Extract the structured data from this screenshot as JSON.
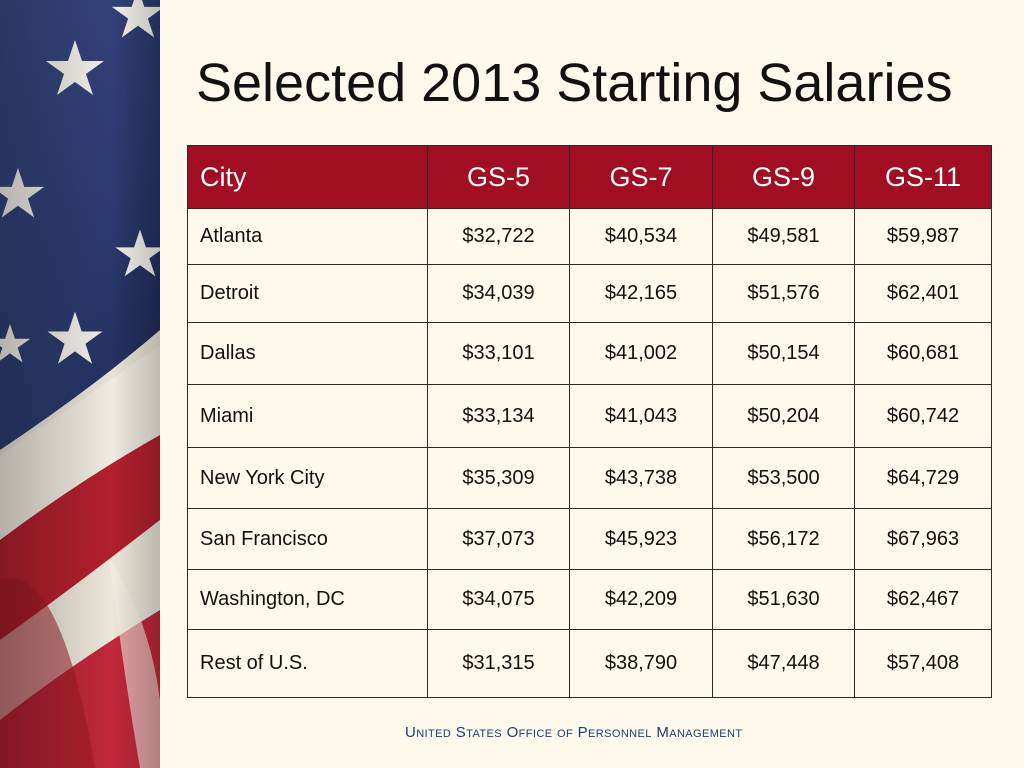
{
  "title": "Selected 2013 Starting Salaries",
  "table": {
    "headers": [
      "City",
      "GS-5",
      "GS-7",
      "GS-9",
      "GS-11"
    ],
    "rows": [
      {
        "city": "Atlanta",
        "values": [
          "$32,722",
          "$40,534",
          "$49,581",
          "$59,987"
        ]
      },
      {
        "city": "Detroit",
        "values": [
          "$34,039",
          "$42,165",
          "$51,576",
          "$62,401"
        ]
      },
      {
        "city": "Dallas",
        "values": [
          "$33,101",
          "$41,002",
          "$50,154",
          "$60,681"
        ]
      },
      {
        "city": "Miami",
        "values": [
          "$33,134",
          "$41,043",
          "$50,204",
          "$60,742"
        ]
      },
      {
        "city": "New York City",
        "values": [
          "$35,309",
          "$43,738",
          "$53,500",
          "$64,729"
        ]
      },
      {
        "city": "San Francisco",
        "values": [
          "$37,073",
          "$45,923",
          "$56,172",
          "$67,963"
        ]
      },
      {
        "city": "Washington, DC",
        "values": [
          "$34,075",
          "$42,209",
          "$51,630",
          "$62,467"
        ]
      },
      {
        "city": "Rest of U.S.",
        "values": [
          "$31,315",
          "$38,790",
          "$47,448",
          "$57,408"
        ]
      }
    ]
  },
  "footer": "United States Office of Personnel Management",
  "colors": {
    "header_bg": "#a10e22",
    "background": "#fdf9ec",
    "footer_text": "#1b3d7a",
    "flag_blue": "#2b3a6e",
    "flag_red": "#b2202c"
  },
  "decoration": "american-flag-image"
}
